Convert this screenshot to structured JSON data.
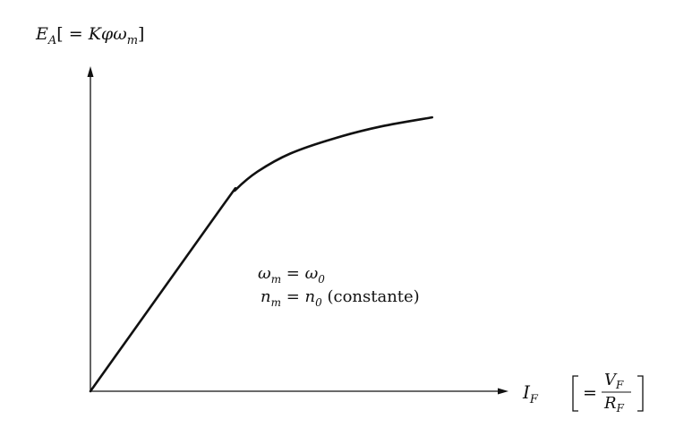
{
  "chart_data": {
    "type": "line",
    "ylabel": {
      "main": "E",
      "main_sub": "A",
      "bracket_open": "[ = ",
      "k": "K",
      "phi": "φ",
      "omega": "ω",
      "omega_sub": "m",
      "bracket_close": "]"
    },
    "xlabel": {
      "main": "I",
      "main_sub": "F",
      "eq": "=",
      "num": "V",
      "num_sub": "F",
      "den": "R",
      "den_sub": "F"
    },
    "annotation": {
      "line1": {
        "lhs": "ω",
        "lhs_sub": "m",
        "eq": " = ",
        "rhs": "ω",
        "rhs_sub": "0"
      },
      "line2": {
        "lhs": "n",
        "lhs_sub": "m",
        "eq": " = ",
        "rhs": "n",
        "rhs_sub": "0",
        "suffix": " (constante)"
      }
    },
    "series": [
      {
        "points": [
          [
            0,
            0
          ],
          [
            0.36,
            0.61
          ],
          [
            0.4,
            0.67
          ],
          [
            0.46,
            0.73
          ],
          [
            0.55,
            0.79
          ],
          [
            0.67,
            0.84
          ],
          [
            0.8,
            0.88
          ],
          [
            0.94,
            0.91
          ]
        ]
      }
    ],
    "xlim": [
      0,
      1.15
    ],
    "ylim": [
      0,
      1.08
    ],
    "grid": false,
    "ticks": false
  }
}
